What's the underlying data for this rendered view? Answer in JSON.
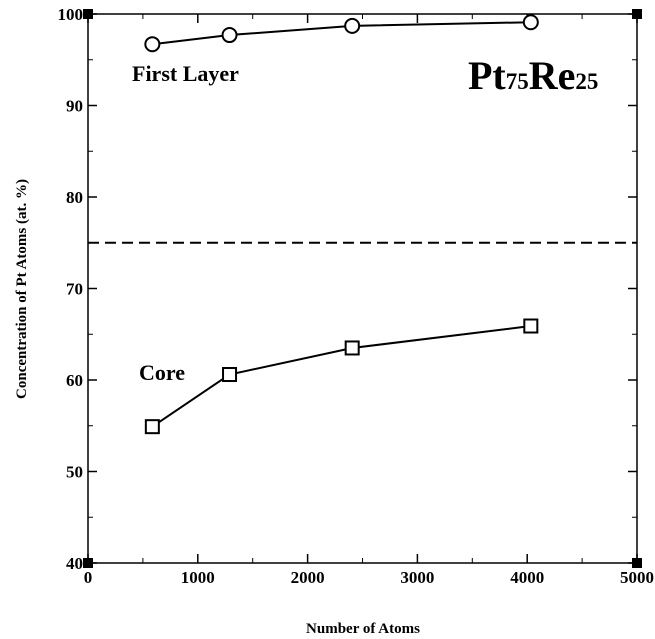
{
  "chart_data": {
    "type": "line",
    "title_parts": [
      {
        "text": "Pt",
        "sub": false
      },
      {
        "text": "75",
        "sub": true
      },
      {
        "text": "Re",
        "sub": false
      },
      {
        "text": "25",
        "sub": true
      }
    ],
    "xlabel": "Number of Atoms",
    "ylabel": "Concentration of Pt Atoms (at. %)",
    "xlim": [
      0,
      5000
    ],
    "ylim": [
      40,
      100
    ],
    "xticks": [
      0,
      1000,
      2000,
      3000,
      4000,
      5000
    ],
    "yticks": [
      40,
      50,
      60,
      70,
      80,
      90,
      100
    ],
    "series": [
      {
        "name": "First Layer",
        "marker": "circle",
        "x": [
          586,
          1289,
          2406,
          4033
        ],
        "y": [
          96.7,
          97.7,
          98.7,
          99.1
        ]
      },
      {
        "name": "Core",
        "marker": "square",
        "x": [
          586,
          1289,
          2406,
          4033
        ],
        "y": [
          54.9,
          60.6,
          63.5,
          65.9
        ]
      }
    ],
    "reference_line": {
      "y": 75,
      "style": "dashed"
    },
    "grid": false
  }
}
